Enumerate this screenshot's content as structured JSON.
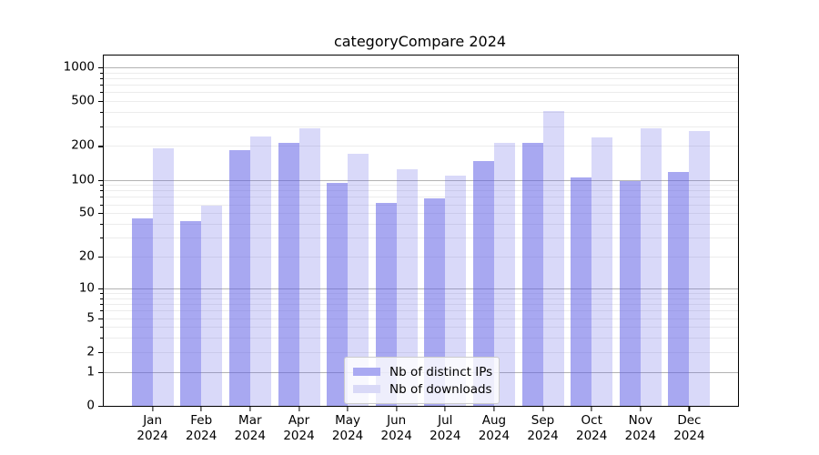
{
  "title": "categoryCompare 2024",
  "chart_data": {
    "type": "bar",
    "title": "categoryCompare 2024",
    "categories": [
      "Jan",
      "Feb",
      "Mar",
      "Apr",
      "May",
      "Jun",
      "Jul",
      "Aug",
      "Sep",
      "Oct",
      "Nov",
      "Dec"
    ],
    "category_year": "2024",
    "series": [
      {
        "name": "Nb of distinct IPs",
        "color": "rgba(95,95,230,0.54)",
        "color_hex_on_white": "#a9a9f2",
        "values": [
          45,
          42,
          185,
          215,
          93,
          62,
          68,
          148,
          215,
          105,
          98,
          118
        ]
      },
      {
        "name": "Nb of downloads",
        "color": "rgba(95,95,230,0.24)",
        "color_hex_on_white": "#d9d9f7",
        "values": [
          190,
          58,
          245,
          285,
          170,
          125,
          108,
          212,
          410,
          237,
          285,
          270
        ]
      }
    ],
    "y_axis": {
      "scale": "log1p",
      "ylim": [
        0,
        1270
      ],
      "ticks": [
        {
          "label": "1000",
          "value": 1000
        },
        {
          "label": "500",
          "value": 500
        },
        {
          "label": "200",
          "value": 200
        },
        {
          "label": "100",
          "value": 100
        },
        {
          "label": "50",
          "value": 50
        },
        {
          "label": "20",
          "value": 20
        },
        {
          "label": "10",
          "value": 10
        },
        {
          "label": "5",
          "value": 5
        },
        {
          "label": "2",
          "value": 2
        },
        {
          "label": "1",
          "value": 1
        },
        {
          "label": "0",
          "value": 0
        }
      ],
      "major_gridline_values": [
        1,
        10,
        100,
        1000
      ],
      "minor_gridline_values": [
        2,
        3,
        4,
        5,
        6,
        7,
        8,
        9,
        20,
        30,
        40,
        50,
        60,
        70,
        80,
        90,
        200,
        300,
        400,
        500,
        600,
        700,
        800,
        900
      ],
      "major_grid_color": "#b3b3b3",
      "minor_grid_color": "#ececec"
    },
    "xlabel": "",
    "ylabel": "",
    "grid": true,
    "legend": {
      "position": "lower center",
      "items": [
        "Nb of distinct IPs",
        "Nb of downloads"
      ]
    }
  }
}
